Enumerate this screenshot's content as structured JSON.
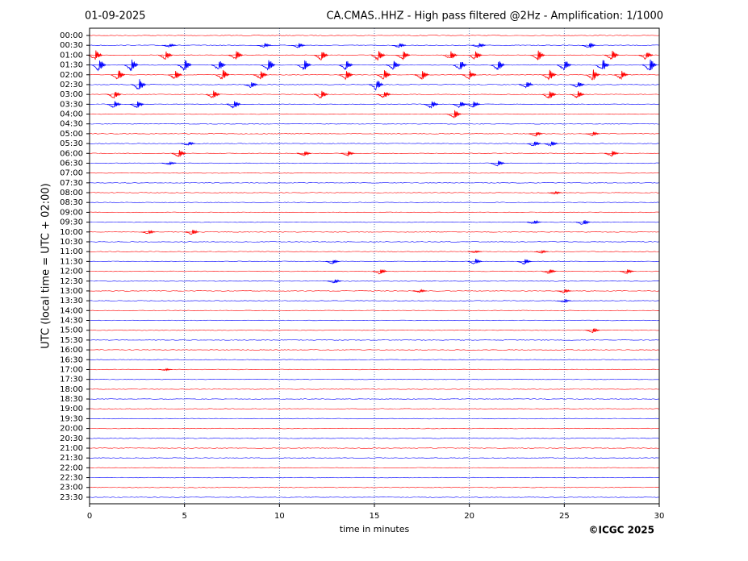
{
  "chart_data": {
    "type": "helicorder",
    "title_left": "01-09-2025",
    "title": "CA.CMAS..HHZ - High pass filtered @2Hz - Amplification: 1/1000",
    "x_label": "time in minutes",
    "y_label": "UTC (local time = UTC + 02:00)",
    "credit": "©ICGC 2025",
    "colors": [
      "#ff0000",
      "#0000ff"
    ],
    "categories": [
      "00:00",
      "00:30",
      "01:00",
      "01:30",
      "02:00",
      "02:30",
      "03:00",
      "03:30",
      "04:00",
      "04:30",
      "05:00",
      "05:30",
      "06:00",
      "06:30",
      "07:00",
      "07:30",
      "08:00",
      "08:30",
      "09:00",
      "09:30",
      "10:00",
      "10:30",
      "11:00",
      "11:30",
      "12:00",
      "12:30",
      "13:00",
      "13:30",
      "14:00",
      "14:30",
      "15:00",
      "15:30",
      "16:00",
      "16:30",
      "17:00",
      "17:30",
      "18:00",
      "18:30",
      "19:00",
      "19:30",
      "20:00",
      "20:30",
      "21:00",
      "21:30",
      "22:00",
      "22:30",
      "23:00",
      "23:30"
    ],
    "xlim": [
      0,
      30
    ],
    "xticks": [
      0,
      5,
      10,
      15,
      20,
      25,
      30
    ],
    "grid": true,
    "bursts": [
      {
        "row": 1,
        "x": 4.2,
        "amplitude": 0.2
      },
      {
        "row": 1,
        "x": 9.2,
        "amplitude": 0.25
      },
      {
        "row": 1,
        "x": 11,
        "amplitude": 0.25
      },
      {
        "row": 1,
        "x": 16.3,
        "amplitude": 0.25
      },
      {
        "row": 1,
        "x": 20.5,
        "amplitude": 0.25
      },
      {
        "row": 1,
        "x": 26.3,
        "amplitude": 0.3
      },
      {
        "row": 2,
        "x": 0.3,
        "amplitude": 0.5
      },
      {
        "row": 2,
        "x": 4,
        "amplitude": 0.45
      },
      {
        "row": 2,
        "x": 7.7,
        "amplitude": 0.5
      },
      {
        "row": 2,
        "x": 12.2,
        "amplitude": 0.5
      },
      {
        "row": 2,
        "x": 15.2,
        "amplitude": 0.55
      },
      {
        "row": 2,
        "x": 16.5,
        "amplitude": 0.45
      },
      {
        "row": 2,
        "x": 19,
        "amplitude": 0.45
      },
      {
        "row": 2,
        "x": 20.3,
        "amplitude": 0.45
      },
      {
        "row": 2,
        "x": 23.6,
        "amplitude": 0.5
      },
      {
        "row": 2,
        "x": 27.5,
        "amplitude": 0.5
      },
      {
        "row": 2,
        "x": 29.3,
        "amplitude": 0.45
      },
      {
        "row": 3,
        "x": 0.5,
        "amplitude": 0.6
      },
      {
        "row": 3,
        "x": 2.2,
        "amplitude": 0.6
      },
      {
        "row": 3,
        "x": 5,
        "amplitude": 0.55
      },
      {
        "row": 3,
        "x": 6.8,
        "amplitude": 0.5
      },
      {
        "row": 3,
        "x": 9.4,
        "amplitude": 0.6
      },
      {
        "row": 3,
        "x": 11.3,
        "amplitude": 0.5
      },
      {
        "row": 3,
        "x": 13.5,
        "amplitude": 0.5
      },
      {
        "row": 3,
        "x": 16,
        "amplitude": 0.45
      },
      {
        "row": 3,
        "x": 19.5,
        "amplitude": 0.5
      },
      {
        "row": 3,
        "x": 21.5,
        "amplitude": 0.55
      },
      {
        "row": 3,
        "x": 25,
        "amplitude": 0.55
      },
      {
        "row": 3,
        "x": 27,
        "amplitude": 0.6
      },
      {
        "row": 3,
        "x": 29.5,
        "amplitude": 0.6
      },
      {
        "row": 4,
        "x": 1.5,
        "amplitude": 0.5
      },
      {
        "row": 4,
        "x": 4.5,
        "amplitude": 0.45
      },
      {
        "row": 4,
        "x": 7,
        "amplitude": 0.5
      },
      {
        "row": 4,
        "x": 9,
        "amplitude": 0.45
      },
      {
        "row": 4,
        "x": 13.5,
        "amplitude": 0.5
      },
      {
        "row": 4,
        "x": 15.5,
        "amplitude": 0.5
      },
      {
        "row": 4,
        "x": 17.5,
        "amplitude": 0.45
      },
      {
        "row": 4,
        "x": 20,
        "amplitude": 0.45
      },
      {
        "row": 4,
        "x": 24.2,
        "amplitude": 0.55
      },
      {
        "row": 4,
        "x": 26.5,
        "amplitude": 0.55
      },
      {
        "row": 4,
        "x": 28,
        "amplitude": 0.45
      },
      {
        "row": 5,
        "x": 2.6,
        "amplitude": 0.6
      },
      {
        "row": 5,
        "x": 8.5,
        "amplitude": 0.3
      },
      {
        "row": 5,
        "x": 15.1,
        "amplitude": 0.55
      },
      {
        "row": 5,
        "x": 23,
        "amplitude": 0.35
      },
      {
        "row": 5,
        "x": 25.7,
        "amplitude": 0.3
      },
      {
        "row": 6,
        "x": 1.3,
        "amplitude": 0.4
      },
      {
        "row": 6,
        "x": 6.5,
        "amplitude": 0.4
      },
      {
        "row": 6,
        "x": 12.2,
        "amplitude": 0.4
      },
      {
        "row": 6,
        "x": 15.5,
        "amplitude": 0.35
      },
      {
        "row": 6,
        "x": 24.2,
        "amplitude": 0.45
      },
      {
        "row": 6,
        "x": 25.7,
        "amplitude": 0.4
      },
      {
        "row": 7,
        "x": 1.3,
        "amplitude": 0.4
      },
      {
        "row": 7,
        "x": 2.5,
        "amplitude": 0.4
      },
      {
        "row": 7,
        "x": 7.6,
        "amplitude": 0.4
      },
      {
        "row": 7,
        "x": 18,
        "amplitude": 0.4
      },
      {
        "row": 7,
        "x": 19.5,
        "amplitude": 0.35
      },
      {
        "row": 7,
        "x": 20.2,
        "amplitude": 0.35
      },
      {
        "row": 8,
        "x": 19.2,
        "amplitude": 0.4
      },
      {
        "row": 10,
        "x": 23.5,
        "amplitude": 0.25
      },
      {
        "row": 10,
        "x": 26.5,
        "amplitude": 0.2
      },
      {
        "row": 11,
        "x": 5.2,
        "amplitude": 0.2
      },
      {
        "row": 11,
        "x": 23.4,
        "amplitude": 0.3
      },
      {
        "row": 11,
        "x": 24.3,
        "amplitude": 0.3
      },
      {
        "row": 12,
        "x": 4.7,
        "amplitude": 0.4
      },
      {
        "row": 12,
        "x": 11.3,
        "amplitude": 0.25
      },
      {
        "row": 12,
        "x": 13.6,
        "amplitude": 0.25
      },
      {
        "row": 12,
        "x": 27.5,
        "amplitude": 0.3
      },
      {
        "row": 13,
        "x": 21.5,
        "amplitude": 0.3
      },
      {
        "row": 13,
        "x": 4.2,
        "amplitude": 0.15
      },
      {
        "row": 16,
        "x": 24.5,
        "amplitude": 0.15
      },
      {
        "row": 19,
        "x": 23.4,
        "amplitude": 0.2
      },
      {
        "row": 19,
        "x": 26,
        "amplitude": 0.3
      },
      {
        "row": 20,
        "x": 3.1,
        "amplitude": 0.2
      },
      {
        "row": 20,
        "x": 5.4,
        "amplitude": 0.3
      },
      {
        "row": 22,
        "x": 20.3,
        "amplitude": 0.1
      },
      {
        "row": 22,
        "x": 23.8,
        "amplitude": 0.15
      },
      {
        "row": 23,
        "x": 12.8,
        "amplitude": 0.25
      },
      {
        "row": 23,
        "x": 20.3,
        "amplitude": 0.3
      },
      {
        "row": 23,
        "x": 22.9,
        "amplitude": 0.3
      },
      {
        "row": 24,
        "x": 15.3,
        "amplitude": 0.3
      },
      {
        "row": 24,
        "x": 24.2,
        "amplitude": 0.25
      },
      {
        "row": 24,
        "x": 28.3,
        "amplitude": 0.25
      },
      {
        "row": 25,
        "x": 12.9,
        "amplitude": 0.2
      },
      {
        "row": 26,
        "x": 17.4,
        "amplitude": 0.15
      },
      {
        "row": 26,
        "x": 25,
        "amplitude": 0.2
      },
      {
        "row": 27,
        "x": 25,
        "amplitude": 0.15
      },
      {
        "row": 30,
        "x": 26.5,
        "amplitude": 0.25
      },
      {
        "row": 34,
        "x": 4,
        "amplitude": 0.1
      }
    ]
  }
}
